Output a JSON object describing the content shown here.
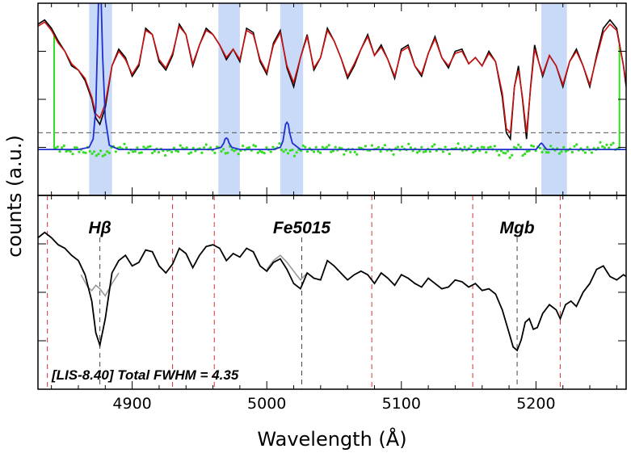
{
  "chart_data": {
    "type": "line",
    "xlabel": "Wavelength (Å)",
    "ylabel": "counts (a.u.)",
    "xlim": [
      4830,
      5267
    ],
    "xticks": [
      4900,
      5000,
      5100,
      5200
    ],
    "annotation": "[LIS-8.40] Total FWHM = 4.35",
    "colors": {
      "observed": "#000000",
      "model": "#cc1111",
      "emission": "#1f2fd0",
      "residuals": "#33dd22",
      "mask": "#c9daf8",
      "index_band": "#444444",
      "pseudo_continuum": "#d43333",
      "smoothed_gray": "#999999"
    },
    "top_panel": {
      "masked_regions": [
        [
          4868,
          4885
        ],
        [
          4964,
          4980
        ],
        [
          5010,
          5027
        ],
        [
          5204,
          5223
        ]
      ],
      "green_window": [
        4842,
        5262
      ],
      "baseline_level": 0.0,
      "dashed_level": 0.08,
      "observed": {
        "name": "",
        "x": [
          4830,
          4835,
          4840,
          4845,
          4850,
          4855,
          4860,
          4865,
          4870,
          4873,
          4876,
          4880,
          4885,
          4890,
          4895,
          4900,
          4905,
          4910,
          4915,
          4920,
          4925,
          4930,
          4935,
          4940,
          4945,
          4950,
          4955,
          4960,
          4965,
          4970,
          4975,
          4980,
          4985,
          4990,
          4995,
          5000,
          5005,
          5010,
          5015,
          5020,
          5025,
          5030,
          5035,
          5040,
          5045,
          5050,
          5055,
          5060,
          5065,
          5070,
          5075,
          5080,
          5085,
          5090,
          5095,
          5100,
          5105,
          5110,
          5115,
          5120,
          5125,
          5130,
          5135,
          5140,
          5145,
          5150,
          5155,
          5160,
          5165,
          5170,
          5175,
          5178,
          5181,
          5184,
          5187,
          5190,
          5193,
          5196,
          5199,
          5202,
          5205,
          5210,
          5215,
          5220,
          5225,
          5230,
          5235,
          5240,
          5245,
          5250,
          5255,
          5260,
          5265,
          5267
        ],
        "y": [
          0.6,
          0.62,
          0.58,
          0.52,
          0.47,
          0.4,
          0.38,
          0.33,
          0.24,
          0.15,
          0.12,
          0.2,
          0.4,
          0.48,
          0.44,
          0.35,
          0.4,
          0.58,
          0.55,
          0.42,
          0.38,
          0.45,
          0.6,
          0.55,
          0.4,
          0.5,
          0.58,
          0.55,
          0.5,
          0.43,
          0.48,
          0.42,
          0.58,
          0.56,
          0.42,
          0.36,
          0.51,
          0.57,
          0.39,
          0.3,
          0.44,
          0.55,
          0.38,
          0.44,
          0.58,
          0.52,
          0.44,
          0.34,
          0.4,
          0.48,
          0.55,
          0.45,
          0.5,
          0.43,
          0.34,
          0.48,
          0.5,
          0.4,
          0.35,
          0.46,
          0.54,
          0.44,
          0.39,
          0.47,
          0.48,
          0.41,
          0.44,
          0.4,
          0.47,
          0.42,
          0.25,
          0.08,
          0.05,
          0.3,
          0.4,
          0.24,
          0.05,
          0.3,
          0.5,
          0.42,
          0.35,
          0.45,
          0.4,
          0.3,
          0.42,
          0.48,
          0.4,
          0.3,
          0.45,
          0.58,
          0.62,
          0.58,
          0.4,
          0.3
        ]
      },
      "model": {
        "name": "",
        "x": [
          4830,
          4835,
          4840,
          4845,
          4850,
          4855,
          4860,
          4865,
          4870,
          4873,
          4876,
          4880,
          4885,
          4890,
          4895,
          4900,
          4905,
          4910,
          4915,
          4920,
          4925,
          4930,
          4935,
          4940,
          4945,
          4950,
          4955,
          4960,
          4965,
          4970,
          4975,
          4980,
          4985,
          4990,
          4995,
          5000,
          5005,
          5010,
          5015,
          5020,
          5025,
          5030,
          5035,
          5040,
          5045,
          5050,
          5055,
          5060,
          5065,
          5070,
          5075,
          5080,
          5085,
          5090,
          5095,
          5100,
          5105,
          5110,
          5115,
          5120,
          5125,
          5130,
          5135,
          5140,
          5145,
          5150,
          5155,
          5160,
          5165,
          5170,
          5175,
          5178,
          5181,
          5184,
          5187,
          5190,
          5193,
          5196,
          5199,
          5202,
          5205,
          5210,
          5215,
          5220,
          5225,
          5230,
          5235,
          5240,
          5245,
          5250,
          5255,
          5260,
          5265,
          5267
        ],
        "y": [
          0.59,
          0.61,
          0.57,
          0.51,
          0.47,
          0.41,
          0.38,
          0.34,
          0.25,
          0.17,
          0.15,
          0.22,
          0.4,
          0.47,
          0.43,
          0.36,
          0.41,
          0.57,
          0.55,
          0.43,
          0.39,
          0.46,
          0.59,
          0.55,
          0.41,
          0.5,
          0.57,
          0.55,
          0.5,
          0.44,
          0.48,
          0.43,
          0.57,
          0.55,
          0.43,
          0.37,
          0.5,
          0.56,
          0.4,
          0.32,
          0.44,
          0.54,
          0.39,
          0.44,
          0.57,
          0.52,
          0.44,
          0.35,
          0.41,
          0.48,
          0.54,
          0.45,
          0.49,
          0.43,
          0.35,
          0.47,
          0.49,
          0.4,
          0.36,
          0.46,
          0.53,
          0.44,
          0.4,
          0.46,
          0.47,
          0.41,
          0.44,
          0.4,
          0.46,
          0.42,
          0.27,
          0.1,
          0.08,
          0.3,
          0.38,
          0.25,
          0.08,
          0.29,
          0.48,
          0.42,
          0.36,
          0.45,
          0.4,
          0.31,
          0.42,
          0.47,
          0.4,
          0.31,
          0.44,
          0.56,
          0.6,
          0.57,
          0.4,
          0.32
        ]
      },
      "emission": {
        "name": "",
        "x": [
          4830,
          4860,
          4868,
          4871,
          4873,
          4874,
          4875,
          4876,
          4877,
          4878,
          4880,
          4883,
          4890,
          4960,
          4966,
          4968,
          4969,
          4970,
          4971,
          4972,
          4974,
          4980,
          5005,
          5010,
          5012,
          5013,
          5014,
          5015,
          5016,
          5017,
          5019,
          5025,
          5195,
          5200,
          5202,
          5203,
          5204,
          5205,
          5206,
          5208,
          5215,
          5267
        ],
        "y": [
          0.0,
          0.0,
          0.01,
          0.05,
          0.2,
          0.45,
          0.72,
          0.82,
          0.7,
          0.45,
          0.15,
          0.02,
          0.0,
          0.0,
          0.01,
          0.03,
          0.05,
          0.055,
          0.05,
          0.03,
          0.01,
          0.0,
          0.0,
          0.01,
          0.04,
          0.08,
          0.12,
          0.13,
          0.12,
          0.08,
          0.03,
          0.0,
          0.0,
          0.0,
          0.015,
          0.025,
          0.03,
          0.025,
          0.015,
          0.0,
          0.0,
          0.0
        ]
      }
    },
    "bottom_panel": {
      "index_lines": [
        {
          "label": "Hβ",
          "center": 4876
        },
        {
          "label": "Fe5015",
          "center": 5026
        },
        {
          "label": "Mgb",
          "center": 5186
        }
      ],
      "pseudo_continuum_bounds": [
        4837,
        4930,
        4961,
        5078,
        5153,
        5218
      ],
      "spectrum": {
        "name": "",
        "x": [
          4830,
          4835,
          4840,
          4845,
          4850,
          4855,
          4860,
          4865,
          4870,
          4873,
          4876,
          4880,
          4885,
          4890,
          4895,
          4900,
          4905,
          4910,
          4915,
          4920,
          4925,
          4930,
          4935,
          4940,
          4945,
          4950,
          4955,
          4960,
          4965,
          4970,
          4975,
          4980,
          4985,
          4990,
          4995,
          5000,
          5005,
          5010,
          5015,
          5020,
          5025,
          5030,
          5035,
          5040,
          5045,
          5050,
          5055,
          5060,
          5065,
          5070,
          5075,
          5080,
          5085,
          5090,
          5095,
          5100,
          5105,
          5110,
          5115,
          5120,
          5125,
          5130,
          5135,
          5140,
          5145,
          5150,
          5155,
          5160,
          5165,
          5170,
          5175,
          5180,
          5183,
          5186,
          5189,
          5192,
          5195,
          5198,
          5201,
          5205,
          5210,
          5215,
          5218,
          5222,
          5226,
          5230,
          5235,
          5240,
          5245,
          5250,
          5255,
          5260,
          5265,
          5267
        ],
        "y": [
          0.76,
          0.79,
          0.76,
          0.72,
          0.7,
          0.66,
          0.63,
          0.55,
          0.4,
          0.22,
          0.15,
          0.3,
          0.56,
          0.63,
          0.66,
          0.6,
          0.62,
          0.69,
          0.68,
          0.6,
          0.56,
          0.61,
          0.7,
          0.67,
          0.59,
          0.66,
          0.71,
          0.72,
          0.7,
          0.63,
          0.67,
          0.65,
          0.7,
          0.68,
          0.6,
          0.57,
          0.62,
          0.64,
          0.58,
          0.5,
          0.47,
          0.56,
          0.53,
          0.52,
          0.63,
          0.6,
          0.56,
          0.52,
          0.55,
          0.57,
          0.55,
          0.5,
          0.56,
          0.53,
          0.49,
          0.55,
          0.53,
          0.5,
          0.48,
          0.53,
          0.5,
          0.47,
          0.48,
          0.52,
          0.51,
          0.48,
          0.5,
          0.46,
          0.47,
          0.44,
          0.35,
          0.22,
          0.14,
          0.12,
          0.18,
          0.28,
          0.3,
          0.24,
          0.25,
          0.33,
          0.38,
          0.35,
          0.3,
          0.38,
          0.4,
          0.37,
          0.45,
          0.5,
          0.58,
          0.6,
          0.54,
          0.52,
          0.55,
          0.54
        ]
      },
      "gray_segments": [
        {
          "x": [
            4862,
            4867,
            4870,
            4873,
            4876,
            4880,
            4885,
            4890
          ],
          "y": [
            0.55,
            0.48,
            0.46,
            0.49,
            0.47,
            0.43,
            0.5,
            0.56
          ]
        },
        {
          "x": [
            5000,
            5005,
            5010,
            5015,
            5020,
            5025,
            5030
          ],
          "y": [
            0.58,
            0.63,
            0.66,
            0.62,
            0.57,
            0.52,
            0.56
          ]
        }
      ]
    }
  }
}
